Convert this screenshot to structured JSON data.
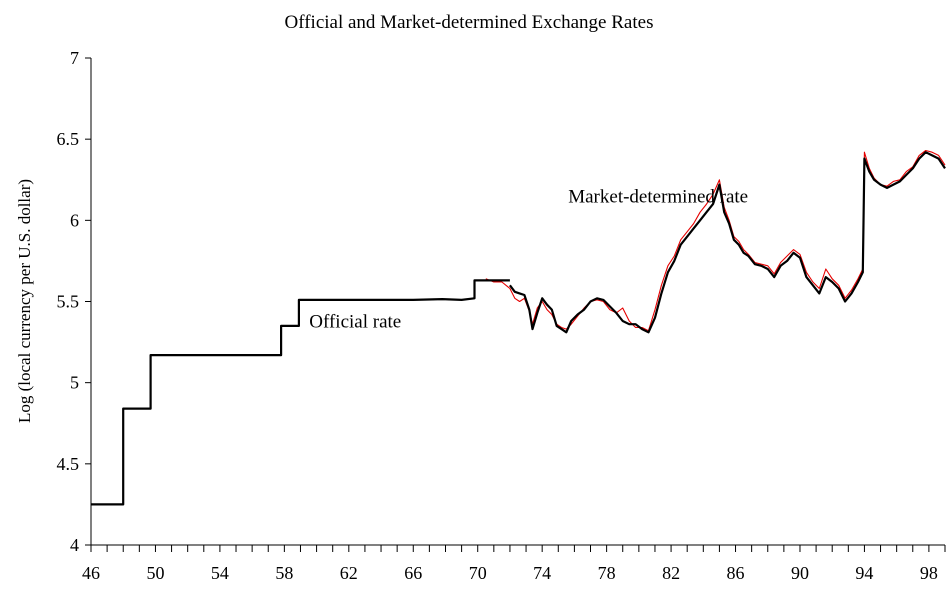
{
  "chart_data": {
    "type": "line",
    "title": "Official and Market-determined Exchange Rates",
    "xlabel": "",
    "ylabel": "Log (local currency per U.S. dollar)",
    "xlim": [
      46,
      99
    ],
    "ylim": [
      4,
      7
    ],
    "x_ticks": [
      46,
      50,
      54,
      58,
      62,
      66,
      70,
      74,
      78,
      82,
      86,
      90,
      94,
      98
    ],
    "x_tick_labels": [
      "46",
      "50",
      "54",
      "58",
      "62",
      "66",
      "70",
      "74",
      "78",
      "82",
      "86",
      "90",
      "94",
      "98"
    ],
    "y_ticks": [
      4,
      4.5,
      5,
      5.5,
      6,
      6.5,
      7
    ],
    "y_tick_labels": [
      "4",
      "4.5",
      "5",
      "5.5",
      "6",
      "6.5",
      "7"
    ],
    "grid": false,
    "annotations": [
      {
        "text": "Market-determined rate",
        "x": 81.2,
        "y": 6.11
      },
      {
        "text": "Official rate",
        "x": 62.4,
        "y": 5.34
      }
    ],
    "series": [
      {
        "name": "Official rate",
        "color": "#000000",
        "step": true,
        "x": [
          46.0,
          48.0,
          48.0,
          49.7,
          49.7,
          57.8,
          57.8,
          58.9,
          58.9,
          64.0,
          66.0,
          67.8,
          69.0,
          69.8,
          69.8,
          72.0
        ],
        "y": [
          4.25,
          4.25,
          4.84,
          4.84,
          5.17,
          5.17,
          5.35,
          5.35,
          5.51,
          5.51,
          5.51,
          5.515,
          5.51,
          5.52,
          5.63,
          5.63
        ]
      },
      {
        "name": "Market-determined rate (black)",
        "color": "#000000",
        "x": [
          72.0,
          72.3,
          72.6,
          72.9,
          73.2,
          73.4,
          73.7,
          74.0,
          74.3,
          74.6,
          74.9,
          75.2,
          75.5,
          75.8,
          76.2,
          76.6,
          77.0,
          77.4,
          77.8,
          78.2,
          78.6,
          79.0,
          79.4,
          79.8,
          80.2,
          80.6,
          81.0,
          81.4,
          81.8,
          82.2,
          82.6,
          83.0,
          83.4,
          83.8,
          84.2,
          84.6,
          85.0,
          85.3,
          85.6,
          85.9,
          86.2,
          86.5,
          86.8,
          87.2,
          87.6,
          88.0,
          88.4,
          88.8,
          89.2,
          89.6,
          90.0,
          90.4,
          90.8,
          91.2,
          91.6,
          92.0,
          92.4,
          92.8,
          93.2,
          93.6,
          93.9,
          94.0,
          94.3,
          94.6,
          95.0,
          95.4,
          95.8,
          96.2,
          96.6,
          97.0,
          97.4,
          97.8,
          98.2,
          98.6,
          99.0
        ],
        "y": [
          5.6,
          5.56,
          5.55,
          5.54,
          5.45,
          5.33,
          5.43,
          5.52,
          5.48,
          5.45,
          5.35,
          5.33,
          5.31,
          5.38,
          5.42,
          5.45,
          5.5,
          5.52,
          5.51,
          5.47,
          5.43,
          5.38,
          5.36,
          5.36,
          5.33,
          5.31,
          5.4,
          5.55,
          5.68,
          5.75,
          5.85,
          5.9,
          5.95,
          6.0,
          6.05,
          6.1,
          6.22,
          6.05,
          5.98,
          5.88,
          5.85,
          5.8,
          5.78,
          5.73,
          5.72,
          5.7,
          5.65,
          5.72,
          5.75,
          5.8,
          5.77,
          5.65,
          5.6,
          5.55,
          5.65,
          5.62,
          5.58,
          5.5,
          5.55,
          5.62,
          5.68,
          6.38,
          6.3,
          6.25,
          6.22,
          6.2,
          6.22,
          6.24,
          6.28,
          6.32,
          6.38,
          6.42,
          6.4,
          6.38,
          6.32
        ]
      },
      {
        "name": "Market-determined rate (red)",
        "color": "#e60000",
        "x": [
          70.5,
          71.0,
          71.5,
          72.0,
          72.3,
          72.6,
          72.9,
          73.2,
          73.4,
          73.7,
          74.0,
          74.3,
          74.6,
          74.9,
          75.2,
          75.5,
          75.8,
          76.2,
          76.6,
          77.0,
          77.4,
          77.8,
          78.2,
          78.6,
          79.0,
          79.4,
          79.8,
          80.2,
          80.6,
          81.0,
          81.4,
          81.8,
          82.2,
          82.6,
          83.0,
          83.4,
          83.8,
          84.2,
          84.6,
          85.0,
          85.3,
          85.6,
          85.9,
          86.2,
          86.5,
          86.8,
          87.2,
          87.6,
          88.0,
          88.4,
          88.8,
          89.2,
          89.6,
          90.0,
          90.4,
          90.8,
          91.2,
          91.6,
          92.0,
          92.4,
          92.8,
          93.2,
          93.6,
          93.9,
          94.0,
          94.3,
          94.6,
          95.0,
          95.4,
          95.8,
          96.2,
          96.6,
          97.0,
          97.4,
          97.8,
          98.2,
          98.6,
          99.0
        ],
        "y": [
          5.64,
          5.62,
          5.62,
          5.58,
          5.52,
          5.5,
          5.52,
          5.44,
          5.36,
          5.46,
          5.5,
          5.45,
          5.42,
          5.36,
          5.34,
          5.33,
          5.36,
          5.41,
          5.46,
          5.5,
          5.51,
          5.5,
          5.45,
          5.43,
          5.46,
          5.38,
          5.34,
          5.34,
          5.32,
          5.45,
          5.6,
          5.72,
          5.78,
          5.88,
          5.93,
          5.98,
          6.05,
          6.1,
          6.16,
          6.25,
          6.08,
          6.0,
          5.9,
          5.87,
          5.82,
          5.79,
          5.74,
          5.73,
          5.72,
          5.67,
          5.74,
          5.78,
          5.82,
          5.79,
          5.68,
          5.62,
          5.58,
          5.7,
          5.64,
          5.6,
          5.52,
          5.57,
          5.64,
          5.7,
          6.42,
          6.32,
          6.26,
          6.22,
          6.21,
          6.24,
          6.25,
          6.3,
          6.33,
          6.4,
          6.43,
          6.42,
          6.4,
          6.34
        ]
      }
    ]
  }
}
